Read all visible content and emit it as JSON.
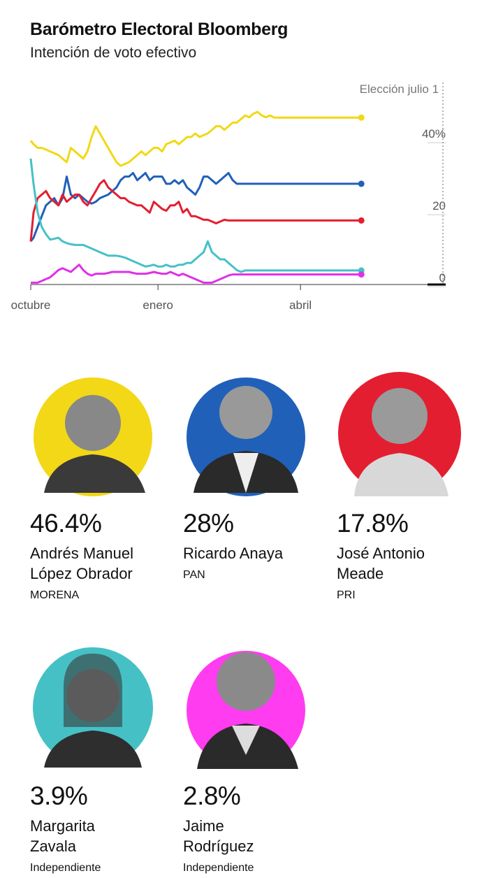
{
  "header": {
    "title": "Barómetro Electoral Bloomberg",
    "subtitle": "Intención de voto efectivo"
  },
  "chart_data": {
    "type": "line",
    "x": [
      0,
      2,
      5,
      8,
      11,
      14,
      17,
      20,
      23,
      26,
      29,
      32,
      35,
      38,
      41,
      44,
      47,
      50,
      53,
      56,
      59,
      62,
      65,
      68,
      71,
      74,
      77,
      80,
      83,
      86,
      89,
      92,
      95,
      98,
      101,
      104,
      107,
      110,
      113,
      116,
      119,
      122,
      125,
      128,
      131,
      134,
      137,
      140,
      143,
      146,
      149,
      152,
      155,
      158,
      161,
      164,
      167,
      170,
      173,
      176,
      179,
      182,
      185,
      188,
      191,
      194,
      197,
      200,
      203,
      206,
      209,
      212,
      215,
      218,
      221,
      224,
      227,
      230,
      233,
      236,
      239
    ],
    "xlim": [
      0,
      300
    ],
    "x_ticks": [
      {
        "x": 0,
        "label": "octubre"
      },
      {
        "x": 92,
        "label": "enero"
      },
      {
        "x": 195,
        "label": "abril"
      }
    ],
    "ylim": [
      0,
      48
    ],
    "y_ticks": [
      {
        "value": 0,
        "label": "0"
      },
      {
        "value": 20,
        "label": "20"
      },
      {
        "value": 40,
        "label": "40%"
      }
    ],
    "annotation": {
      "x": 298,
      "label": "Elección julio 1"
    },
    "series": [
      {
        "color": "#f2d816",
        "values": [
          40,
          39,
          38,
          38,
          37.5,
          37,
          36.5,
          36,
          35,
          34,
          38,
          37,
          36,
          35,
          37,
          41,
          44,
          42,
          40,
          38,
          36,
          34,
          33,
          33.5,
          34,
          35,
          36,
          37,
          36,
          37,
          38,
          38,
          37,
          39,
          39.5,
          40,
          39,
          40,
          41,
          41,
          42,
          41,
          41.5,
          42,
          43,
          44,
          44,
          43,
          44,
          45,
          45,
          46,
          47,
          46.5,
          47.5,
          48,
          47,
          46.5,
          47,
          46.4,
          46.4,
          46.4,
          46.4,
          46.4,
          46.4,
          46.4,
          46.4,
          46.4,
          46.4,
          46.4,
          46.4,
          46.4,
          46.4,
          46.4,
          46.4,
          46.4,
          46.4,
          46.4,
          46.4,
          46.4,
          46.4
        ]
      },
      {
        "color": "#2060b8",
        "values": [
          12,
          13,
          16,
          19,
          22,
          23,
          24,
          22,
          24,
          30,
          25,
          24,
          25,
          24,
          23,
          22.5,
          23,
          24,
          24.5,
          25,
          26,
          27,
          29,
          30,
          30,
          31,
          29,
          30,
          31,
          29,
          30,
          30,
          30,
          28,
          28,
          29,
          28,
          29,
          27,
          26,
          25,
          27,
          30,
          30,
          29,
          28,
          29,
          30,
          31,
          29,
          28,
          28,
          28,
          28,
          28,
          28,
          28,
          28,
          28,
          28,
          28,
          28,
          28,
          28,
          28,
          28,
          28,
          28,
          28,
          28,
          28,
          28,
          28,
          28,
          28,
          28,
          28,
          28,
          28,
          28,
          28
        ]
      },
      {
        "color": "#e31e30",
        "values": [
          12,
          20,
          24,
          25,
          26,
          24,
          23,
          22,
          25,
          23,
          24,
          25,
          25,
          23,
          22,
          24,
          26,
          28,
          29,
          27,
          26,
          25,
          24,
          24,
          23,
          22.5,
          22,
          22,
          21,
          20,
          23,
          22,
          21,
          20.5,
          22,
          22,
          23,
          20,
          21,
          19,
          19,
          18.5,
          18,
          18,
          17.5,
          17,
          17.5,
          18,
          17.8,
          17.8,
          17.8,
          17.8,
          17.8,
          17.8,
          17.8,
          17.8,
          17.8,
          17.8,
          17.8,
          17.8,
          17.8,
          17.8,
          17.8,
          17.8,
          17.8,
          17.8,
          17.8,
          17.8,
          17.8,
          17.8,
          17.8,
          17.8,
          17.8,
          17.8,
          17.8,
          17.8,
          17.8,
          17.8,
          17.8,
          17.8,
          17.8
        ]
      },
      {
        "color": "#45c1c6",
        "values": [
          35,
          28,
          20,
          16,
          14,
          12.5,
          12.7,
          13,
          12,
          11.5,
          11.2,
          11,
          11,
          11,
          10.5,
          10,
          9.5,
          9,
          8.5,
          8,
          8,
          8,
          7.8,
          7.5,
          7,
          6.5,
          6,
          5.5,
          5,
          5.2,
          5.5,
          5,
          5,
          5.5,
          5,
          5,
          5.5,
          5.5,
          6,
          6,
          7,
          8,
          9,
          12,
          9,
          8,
          7,
          7,
          6,
          5,
          4,
          3.5,
          3.9,
          3.9,
          3.9,
          3.9,
          3.9,
          3.9,
          3.9,
          3.9,
          3.9,
          3.9,
          3.9,
          3.9,
          3.9,
          3.9,
          3.9,
          3.9,
          3.9,
          3.9,
          3.9,
          3.9,
          3.9,
          3.9,
          3.9,
          3.9,
          3.9,
          3.9,
          3.9,
          3.9,
          3.9
        ]
      },
      {
        "color": "#e030e8",
        "values": [
          0.5,
          0.5,
          0.5,
          1,
          1.5,
          2,
          3,
          4,
          4.5,
          4,
          3.5,
          4.5,
          5.5,
          4,
          3,
          2.5,
          3,
          3,
          3,
          3.2,
          3.5,
          3.5,
          3.5,
          3.5,
          3.5,
          3.2,
          3,
          3,
          3,
          3.2,
          3.5,
          3.2,
          3,
          3,
          3.5,
          3,
          2.5,
          3,
          2.5,
          2,
          1.5,
          1,
          0.5,
          0.5,
          0.5,
          1,
          1.5,
          2,
          2.5,
          2.8,
          2.8,
          2.8,
          2.8,
          2.8,
          2.8,
          2.8,
          2.8,
          2.8,
          2.8,
          2.8,
          2.8,
          2.8,
          2.8,
          2.8,
          2.8,
          2.8,
          2.8,
          2.8,
          2.8,
          2.8,
          2.8,
          2.8,
          2.8,
          2.8,
          2.8,
          2.8,
          2.8,
          2.8,
          2.8,
          2.8,
          2.8
        ]
      }
    ],
    "series_last_index": 80
  },
  "candidates": [
    {
      "pct": "46.4%",
      "name1": "Andrés Manuel",
      "name2": "López Obrador",
      "party": "MORENA",
      "color": "#f2d816",
      "icon": "portrait-icon"
    },
    {
      "pct": "28%",
      "name1": "Ricardo Anaya",
      "name2": "",
      "party": "PAN",
      "color": "#2060b8",
      "icon": "portrait-icon"
    },
    {
      "pct": "17.8%",
      "name1": "José Antonio",
      "name2": "Meade",
      "party": "PRI",
      "color": "#e31e30",
      "icon": "portrait-icon"
    },
    {
      "pct": "3.9%",
      "name1": "Margarita",
      "name2": "Zavala",
      "party": "Independiente",
      "color": "#45c1c6",
      "icon": "portrait-icon"
    },
    {
      "pct": "2.8%",
      "name1": "Jaime",
      "name2": "Rodríguez",
      "party": "Independiente",
      "color": "#ff3cf0",
      "icon": "portrait-icon"
    }
  ]
}
